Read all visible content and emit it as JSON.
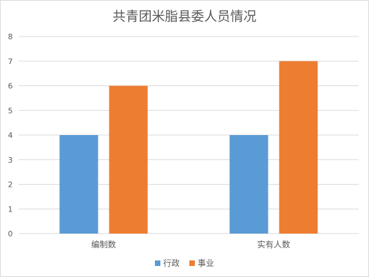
{
  "chart_data": {
    "type": "bar",
    "title": "共青团米脂县委人员情况",
    "categories": [
      "编制数",
      "实有人数"
    ],
    "series": [
      {
        "name": "行政",
        "values": [
          4,
          4
        ],
        "color": "#5b9bd5"
      },
      {
        "name": "事业",
        "values": [
          6,
          7
        ],
        "color": "#ed7d31"
      }
    ],
    "ylim": [
      0,
      8
    ],
    "yticks": [
      0,
      1,
      2,
      3,
      4,
      5,
      6,
      7,
      8
    ],
    "grid": true,
    "legend_position": "bottom"
  }
}
